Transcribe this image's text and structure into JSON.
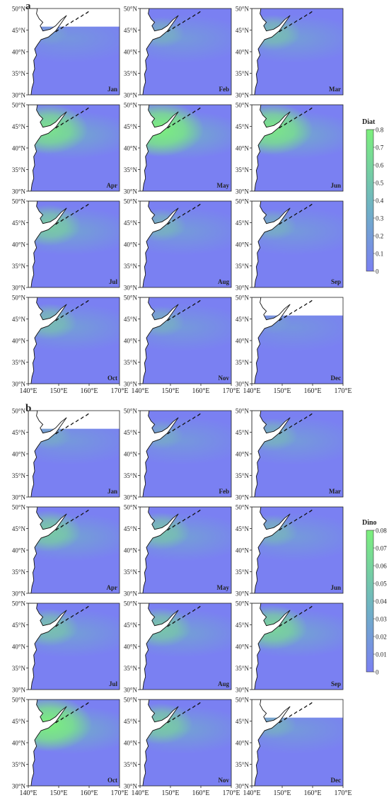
{
  "figure": {
    "panels": [
      {
        "label": "a",
        "variable": "Diat",
        "colorbar": {
          "name": "Diat",
          "min": 0,
          "max": 0.8,
          "ticks": [
            "0",
            "0.1",
            "0.2",
            "0.3",
            "0.4",
            "0.5",
            "0.6",
            "0.7",
            "0.8"
          ]
        },
        "months": [
          "Jan",
          "Feb",
          "Mar",
          "Apr",
          "May",
          "Jun",
          "Jul",
          "Aug",
          "Sep",
          "Oct",
          "Nov",
          "Dec"
        ],
        "bloom_level": [
          0.15,
          0.3,
          0.45,
          0.85,
          1.0,
          0.9,
          0.6,
          0.35,
          0.3,
          0.45,
          0.3,
          0.12
        ]
      },
      {
        "label": "b",
        "variable": "Dino",
        "colorbar": {
          "name": "Dino",
          "min": 0,
          "max": 0.08,
          "ticks": [
            "0",
            "0.01",
            "0.02",
            "0.03",
            "0.04",
            "0.05",
            "0.06",
            "0.07",
            "0.08"
          ]
        },
        "months": [
          "Jan",
          "Feb",
          "Mar",
          "Apr",
          "May",
          "Jun",
          "Jul",
          "Aug",
          "Sep",
          "Oct",
          "Nov",
          "Dec"
        ],
        "bloom_level": [
          0.25,
          0.25,
          0.35,
          0.6,
          0.5,
          0.35,
          0.5,
          0.55,
          0.7,
          1.0,
          0.6,
          0.3
        ]
      }
    ],
    "y_ticks": [
      "30°N",
      "35°N",
      "40°N",
      "45°N",
      "50°N"
    ],
    "x_ticks": [
      "140°E",
      "150°E",
      "160°E",
      "170°E"
    ],
    "colors": {
      "low": "#7a80f2",
      "mid": "#6fb2c4",
      "high": "#7cf07c",
      "land": "#ffffff",
      "coast": "#111111"
    }
  },
  "chart_data": [
    {
      "type": "heatmap",
      "title": "",
      "panel_label": "a",
      "variable": "Diat",
      "colorbar_range": [
        0,
        0.8
      ],
      "xlim": [
        140,
        170
      ],
      "ylim": [
        30,
        50
      ],
      "x_ticks": [
        "140°E",
        "150°E",
        "160°E",
        "170°E"
      ],
      "y_ticks": [
        "30°N",
        "35°N",
        "40°N",
        "45°N",
        "50°N"
      ],
      "facets": [
        "Jan",
        "Feb",
        "Mar",
        "Apr",
        "May",
        "Jun",
        "Jul",
        "Aug",
        "Sep",
        "Oct",
        "Nov",
        "Dec"
      ]
    },
    {
      "type": "heatmap",
      "title": "",
      "panel_label": "b",
      "variable": "Dino",
      "colorbar_range": [
        0,
        0.08
      ],
      "xlim": [
        140,
        170
      ],
      "ylim": [
        30,
        50
      ],
      "x_ticks": [
        "140°E",
        "150°E",
        "160°E",
        "170°E"
      ],
      "y_ticks": [
        "30°N",
        "35°N",
        "40°N",
        "45°N",
        "50°N"
      ],
      "facets": [
        "Jan",
        "Feb",
        "Mar",
        "Apr",
        "May",
        "Jun",
        "Jul",
        "Aug",
        "Sep",
        "Oct",
        "Nov",
        "Dec"
      ]
    }
  ]
}
